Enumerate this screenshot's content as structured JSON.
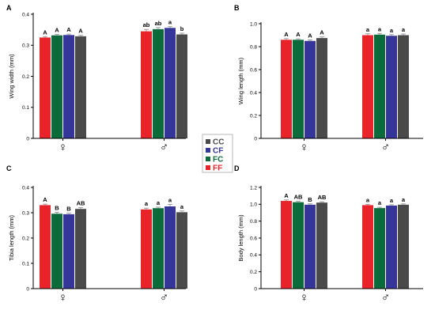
{
  "chart_data": [
    {
      "type": "bar",
      "panel": "A",
      "ylabel": "Wing width (mm)",
      "ylim": [
        0,
        0.4
      ],
      "yticks": [
        "0",
        "0.1",
        "0.2",
        "0.3",
        "0.4"
      ],
      "groups": [
        "♀",
        "♂"
      ],
      "series": [
        {
          "name": "FF",
          "values": [
            0.325,
            0.345
          ],
          "errors": [
            0.003,
            0.006
          ],
          "letters": [
            "A",
            "ab"
          ]
        },
        {
          "name": "FC",
          "values": [
            0.332,
            0.352
          ],
          "errors": [
            0.003,
            0.005
          ],
          "letters": [
            "A",
            "ab"
          ]
        },
        {
          "name": "CF",
          "values": [
            0.333,
            0.356
          ],
          "errors": [
            0.003,
            0.004
          ],
          "letters": [
            "A",
            "a"
          ]
        },
        {
          "name": "CC",
          "values": [
            0.329,
            0.335
          ],
          "errors": [
            0.003,
            0.004
          ],
          "letters": [
            "A",
            "b"
          ]
        }
      ]
    },
    {
      "type": "bar",
      "panel": "B",
      "ylabel": "Wing length (mm)",
      "ylim": [
        0,
        1.0
      ],
      "yticks": [
        "0",
        "0.2",
        "0.4",
        "0.6",
        "0.8",
        "1.0"
      ],
      "groups": [
        "♀",
        "♂"
      ],
      "series": [
        {
          "name": "FF",
          "values": [
            0.86,
            0.9
          ],
          "errors": [
            0.01,
            0.012
          ],
          "letters": [
            "A",
            "a"
          ]
        },
        {
          "name": "FC",
          "values": [
            0.86,
            0.905
          ],
          "errors": [
            0.008,
            0.01
          ],
          "letters": [
            "A",
            "a"
          ]
        },
        {
          "name": "CF",
          "values": [
            0.85,
            0.895
          ],
          "errors": [
            0.009,
            0.01
          ],
          "letters": [
            "A",
            "a"
          ]
        },
        {
          "name": "CC",
          "values": [
            0.875,
            0.9
          ],
          "errors": [
            0.01,
            0.01
          ],
          "letters": [
            "A",
            "a"
          ]
        }
      ]
    },
    {
      "type": "bar",
      "panel": "C",
      "ylabel": "Tibia length (mm)",
      "ylim": [
        0,
        0.4
      ],
      "yticks": [
        "0",
        "0.1",
        "0.2",
        "0.3",
        "0.4"
      ],
      "groups": [
        "♀",
        "♂"
      ],
      "series": [
        {
          "name": "FF",
          "values": [
            0.33,
            0.313
          ],
          "errors": [
            0.004,
            0.005
          ],
          "letters": [
            "A",
            "a"
          ]
        },
        {
          "name": "FC",
          "values": [
            0.296,
            0.318
          ],
          "errors": [
            0.006,
            0.004
          ],
          "letters": [
            "B",
            "a"
          ]
        },
        {
          "name": "CF",
          "values": [
            0.294,
            0.325
          ],
          "errors": [
            0.004,
            0.008
          ],
          "letters": [
            "B",
            "a"
          ]
        },
        {
          "name": "CC",
          "values": [
            0.315,
            0.302
          ],
          "errors": [
            0.005,
            0.005
          ],
          "letters": [
            "AB",
            "a"
          ]
        }
      ]
    },
    {
      "type": "bar",
      "panel": "D",
      "ylabel": "Body length (mm)",
      "ylim": [
        0,
        1.2
      ],
      "yticks": [
        "0",
        "0.2",
        "0.4",
        "0.6",
        "0.8",
        "1.0",
        "1.2"
      ],
      "groups": [
        "♀",
        "♂"
      ],
      "series": [
        {
          "name": "FF",
          "values": [
            1.04,
            0.99
          ],
          "errors": [
            0.012,
            0.01
          ],
          "letters": [
            "A",
            "a"
          ]
        },
        {
          "name": "FC",
          "values": [
            1.025,
            0.955
          ],
          "errors": [
            0.01,
            0.01
          ],
          "letters": [
            "AB",
            "a"
          ]
        },
        {
          "name": "CF",
          "values": [
            0.995,
            0.985
          ],
          "errors": [
            0.01,
            0.01
          ],
          "letters": [
            "B",
            "a"
          ]
        },
        {
          "name": "CC",
          "values": [
            1.02,
            0.995
          ],
          "errors": [
            0.01,
            0.01
          ],
          "letters": [
            "AB",
            "a"
          ]
        }
      ]
    }
  ],
  "legend": [
    {
      "label": "CC",
      "color": "#4a4a4a"
    },
    {
      "label": "CF",
      "color": "#35359a"
    },
    {
      "label": "FC",
      "color": "#0b6b3a"
    },
    {
      "label": "FF",
      "color": "#e8232a"
    }
  ],
  "colors": {
    "FF": "#e8232a",
    "FC": "#0b6b3a",
    "CF": "#35359a",
    "CC": "#4a4a4a"
  }
}
